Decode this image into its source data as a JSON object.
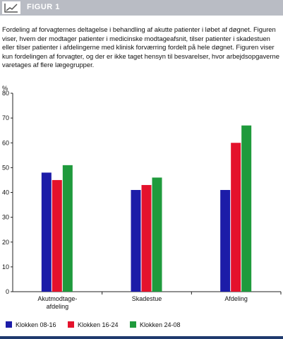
{
  "header": {
    "title": "FIGUR 1"
  },
  "caption": "Fordeling af forvagternes deltagelse i behandling af akutte patienter i løbet af døgnet. Figuren viser, hvem der modtager patienter i medicinske modtageafsnit, tilser patienter i skadestuen eller tilser patienter i afdelingerne med klinisk forværring fordelt på hele døgnet. Figuren viser kun fordelingen af forvagter, og der er ikke taget hensyn til besvarelser, hvor arbejdsopgaverne varetages af flere lægegrupper.",
  "chart_data": {
    "type": "bar",
    "y_label": "%",
    "categories": [
      "Akutmodtage-\nafdeling",
      "Skadestue",
      "Afdeling"
    ],
    "series": [
      {
        "name": "Klokken 08-16",
        "color": "#1c1ca8",
        "values": [
          48,
          41,
          41
        ]
      },
      {
        "name": "Klokken 16-24",
        "color": "#e4122c",
        "values": [
          45,
          43,
          60
        ]
      },
      {
        "name": "Klokken 24-08",
        "color": "#1f9a3c",
        "values": [
          51,
          46,
          67
        ]
      }
    ],
    "ylim": [
      0,
      80
    ],
    "yticks": [
      0,
      10,
      20,
      30,
      40,
      50,
      60,
      70,
      80
    ],
    "grid": false,
    "legend": "bottom"
  }
}
